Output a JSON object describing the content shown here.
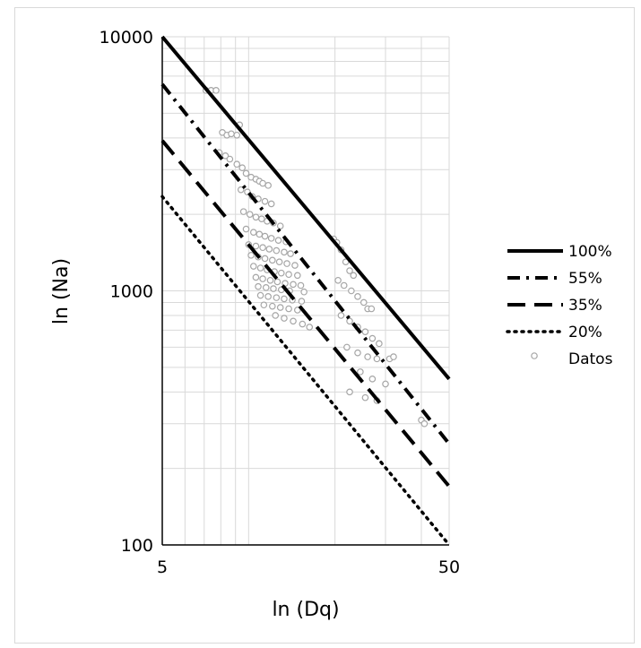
{
  "chart_data": {
    "type": "scatter",
    "xlabel": "ln (Dq)",
    "ylabel": "ln (Na)",
    "x_scale": "log",
    "y_scale": "log",
    "xlim": [
      5,
      50
    ],
    "ylim": [
      100,
      10000
    ],
    "x_ticks": [
      "5",
      "50"
    ],
    "y_ticks": [
      "100",
      "1000",
      "10000"
    ],
    "grid": true,
    "legend_position": "right",
    "series": [
      {
        "name": "100%",
        "kind": "line",
        "style": "solid",
        "points": [
          [
            5,
            10000
          ],
          [
            50,
            450
          ]
        ]
      },
      {
        "name": "55%",
        "kind": "line",
        "style": "dashdot",
        "points": [
          [
            5,
            6500
          ],
          [
            50,
            250
          ]
        ]
      },
      {
        "name": "35%",
        "kind": "line",
        "style": "dashed",
        "points": [
          [
            5,
            3900
          ],
          [
            50,
            170
          ]
        ]
      },
      {
        "name": "20%",
        "kind": "line",
        "style": "dotted",
        "points": [
          [
            5,
            2350
          ],
          [
            50,
            100
          ]
        ]
      },
      {
        "name": "Datos",
        "kind": "scatter",
        "marker": "circle-open",
        "points": [
          [
            7.1,
            6150
          ],
          [
            7.4,
            6150
          ],
          [
            7.7,
            6150
          ],
          [
            8.1,
            4200
          ],
          [
            8.4,
            4100
          ],
          [
            8.7,
            4150
          ],
          [
            9.1,
            4100
          ],
          [
            9.3,
            4500
          ],
          [
            7.9,
            3500
          ],
          [
            8.3,
            3400
          ],
          [
            8.6,
            3300
          ],
          [
            9.1,
            3150
          ],
          [
            9.5,
            3050
          ],
          [
            9.8,
            2900
          ],
          [
            10.2,
            2800
          ],
          [
            10.6,
            2750
          ],
          [
            10.9,
            2700
          ],
          [
            11.2,
            2650
          ],
          [
            11.7,
            2600
          ],
          [
            9.4,
            2500
          ],
          [
            9.9,
            2450
          ],
          [
            10.3,
            2350
          ],
          [
            10.8,
            2300
          ],
          [
            11.4,
            2250
          ],
          [
            12.0,
            2200
          ],
          [
            9.6,
            2050
          ],
          [
            10.1,
            2000
          ],
          [
            10.6,
            1950
          ],
          [
            11.1,
            1920
          ],
          [
            11.6,
            1880
          ],
          [
            12.2,
            1850
          ],
          [
            12.9,
            1800
          ],
          [
            9.8,
            1750
          ],
          [
            10.4,
            1700
          ],
          [
            10.9,
            1670
          ],
          [
            11.4,
            1640
          ],
          [
            12.0,
            1610
          ],
          [
            12.7,
            1580
          ],
          [
            13.5,
            1560
          ],
          [
            10.0,
            1520
          ],
          [
            10.6,
            1500
          ],
          [
            11.2,
            1480
          ],
          [
            11.8,
            1460
          ],
          [
            12.5,
            1440
          ],
          [
            13.3,
            1420
          ],
          [
            14.0,
            1400
          ],
          [
            10.2,
            1380
          ],
          [
            10.8,
            1360
          ],
          [
            11.4,
            1340
          ],
          [
            12.1,
            1320
          ],
          [
            12.8,
            1300
          ],
          [
            13.6,
            1280
          ],
          [
            14.5,
            1260
          ],
          [
            10.4,
            1250
          ],
          [
            11.0,
            1230
          ],
          [
            11.6,
            1210
          ],
          [
            12.3,
            1190
          ],
          [
            13.0,
            1175
          ],
          [
            13.8,
            1160
          ],
          [
            14.8,
            1150
          ],
          [
            10.6,
            1130
          ],
          [
            11.2,
            1115
          ],
          [
            11.9,
            1100
          ],
          [
            12.6,
            1085
          ],
          [
            13.4,
            1070
          ],
          [
            14.3,
            1060
          ],
          [
            15.2,
            1050
          ],
          [
            10.8,
            1040
          ],
          [
            11.5,
            1030
          ],
          [
            12.2,
            1020
          ],
          [
            13.0,
            1010
          ],
          [
            13.9,
            1000
          ],
          [
            15.6,
            990
          ],
          [
            11.0,
            960
          ],
          [
            11.7,
            950
          ],
          [
            12.5,
            940
          ],
          [
            13.3,
            930
          ],
          [
            14.2,
            920
          ],
          [
            15.3,
            910
          ],
          [
            11.3,
            880
          ],
          [
            12.1,
            870
          ],
          [
            12.9,
            860
          ],
          [
            13.8,
            850
          ],
          [
            14.8,
            840
          ],
          [
            12.4,
            800
          ],
          [
            13.3,
            780
          ],
          [
            14.3,
            760
          ],
          [
            15.4,
            740
          ],
          [
            16.3,
            720
          ],
          [
            19.8,
            1600
          ],
          [
            20.3,
            1550
          ],
          [
            21.0,
            1450
          ],
          [
            21.8,
            1300
          ],
          [
            22.5,
            1200
          ],
          [
            23.2,
            1150
          ],
          [
            20.5,
            1100
          ],
          [
            21.5,
            1050
          ],
          [
            22.8,
            1000
          ],
          [
            24.0,
            950
          ],
          [
            25.2,
            900
          ],
          [
            26.0,
            850
          ],
          [
            26.8,
            850
          ],
          [
            21.0,
            800
          ],
          [
            22.5,
            760
          ],
          [
            24.0,
            720
          ],
          [
            25.5,
            690
          ],
          [
            27.0,
            650
          ],
          [
            28.5,
            620
          ],
          [
            22.0,
            600
          ],
          [
            24.0,
            570
          ],
          [
            26.0,
            550
          ],
          [
            28.0,
            540
          ],
          [
            31.0,
            540
          ],
          [
            32.0,
            550
          ],
          [
            24.5,
            480
          ],
          [
            27.0,
            450
          ],
          [
            30.0,
            430
          ],
          [
            22.5,
            400
          ],
          [
            25.5,
            380
          ],
          [
            28.0,
            370
          ],
          [
            40.0,
            310
          ],
          [
            41.0,
            300
          ]
        ]
      }
    ],
    "colors": {
      "lines": "#000000",
      "markers": "#a6a6a6",
      "grid": "#d9d9d9"
    }
  }
}
